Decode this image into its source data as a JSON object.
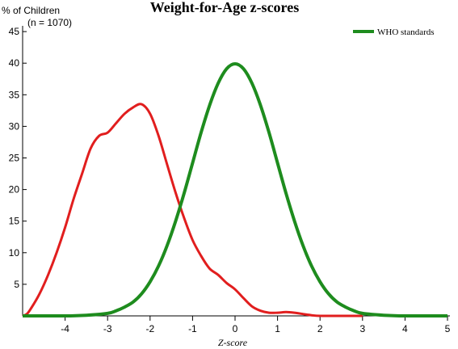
{
  "chart_data": {
    "type": "line",
    "title": "Weight-for-Age z-scores",
    "ylabel": "% of Children",
    "sample_note": "(n = 1070)",
    "xlabel": "Z-score",
    "xlim": [
      -5,
      5
    ],
    "ylim": [
      0,
      45
    ],
    "x_ticks": [
      -4,
      -3,
      -2,
      -1,
      0,
      1,
      2,
      3,
      4,
      5
    ],
    "y_ticks": [
      5,
      10,
      15,
      20,
      25,
      30,
      35,
      40,
      45
    ],
    "grid": false,
    "legend_position": "top-right",
    "series": [
      {
        "color": "#e11e1e",
        "points": [
          [
            -5,
            0
          ],
          [
            -4.9,
            0.3
          ],
          [
            -4.8,
            1.2
          ],
          [
            -4.6,
            3.5
          ],
          [
            -4.4,
            6.5
          ],
          [
            -4.2,
            10
          ],
          [
            -4.0,
            14
          ],
          [
            -3.8,
            18.5
          ],
          [
            -3.6,
            22.5
          ],
          [
            -3.4,
            26.5
          ],
          [
            -3.2,
            28.5
          ],
          [
            -3.0,
            29
          ],
          [
            -2.8,
            30.5
          ],
          [
            -2.6,
            32
          ],
          [
            -2.4,
            33
          ],
          [
            -2.2,
            33.5
          ],
          [
            -2.0,
            32
          ],
          [
            -1.8,
            28.5
          ],
          [
            -1.6,
            24
          ],
          [
            -1.4,
            19.5
          ],
          [
            -1.2,
            15.5
          ],
          [
            -1.0,
            12
          ],
          [
            -0.8,
            9.5
          ],
          [
            -0.6,
            7.5
          ],
          [
            -0.4,
            6.5
          ],
          [
            -0.2,
            5.2
          ],
          [
            0.0,
            4.2
          ],
          [
            0.2,
            2.8
          ],
          [
            0.4,
            1.5
          ],
          [
            0.6,
            0.8
          ],
          [
            0.8,
            0.5
          ],
          [
            1.0,
            0.5
          ],
          [
            1.2,
            0.6
          ],
          [
            1.4,
            0.5
          ],
          [
            1.6,
            0.3
          ],
          [
            1.8,
            0.1
          ],
          [
            2.0,
            0
          ],
          [
            2.5,
            0
          ],
          [
            3.0,
            0
          ]
        ]
      },
      {
        "name": "WHO standards",
        "color": "#1e8c1e",
        "points": [
          [
            -5,
            0
          ],
          [
            -4,
            0
          ],
          [
            -3.5,
            0.1
          ],
          [
            -3.0,
            0.4
          ],
          [
            -2.8,
            0.8
          ],
          [
            -2.6,
            1.4
          ],
          [
            -2.4,
            2.2
          ],
          [
            -2.2,
            3.5
          ],
          [
            -2.0,
            5.4
          ],
          [
            -1.8,
            7.9
          ],
          [
            -1.6,
            11.1
          ],
          [
            -1.4,
            15.0
          ],
          [
            -1.2,
            19.4
          ],
          [
            -1.0,
            24.2
          ],
          [
            -0.8,
            29.0
          ],
          [
            -0.6,
            33.3
          ],
          [
            -0.4,
            36.8
          ],
          [
            -0.2,
            39.1
          ],
          [
            0.0,
            39.9
          ],
          [
            0.2,
            39.1
          ],
          [
            0.4,
            36.8
          ],
          [
            0.6,
            33.3
          ],
          [
            0.8,
            29.0
          ],
          [
            1.0,
            24.2
          ],
          [
            1.2,
            19.4
          ],
          [
            1.4,
            15.0
          ],
          [
            1.6,
            11.1
          ],
          [
            1.8,
            7.9
          ],
          [
            2.0,
            5.4
          ],
          [
            2.2,
            3.5
          ],
          [
            2.4,
            2.2
          ],
          [
            2.6,
            1.4
          ],
          [
            2.8,
            0.8
          ],
          [
            3.0,
            0.4
          ],
          [
            3.5,
            0.1
          ],
          [
            4.0,
            0
          ],
          [
            5.0,
            0
          ]
        ]
      }
    ]
  }
}
